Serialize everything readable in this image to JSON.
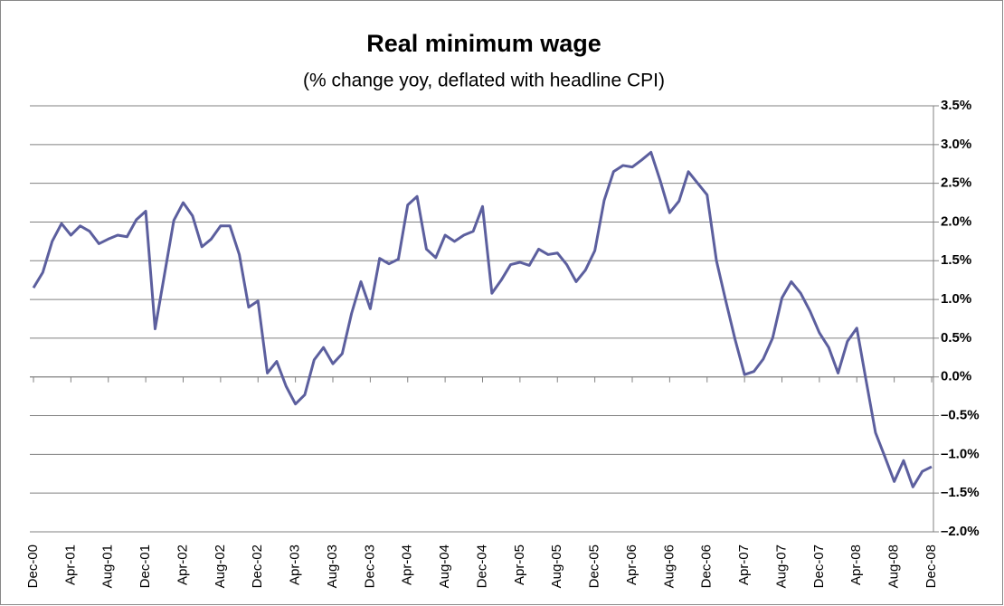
{
  "chart_data": {
    "type": "line",
    "title": "Real minimum wage",
    "subtitle": "(% change yoy, deflated with headline CPI)",
    "categories": [
      "Dec-00",
      null,
      null,
      null,
      "Apr-01",
      null,
      null,
      null,
      "Aug-01",
      null,
      null,
      null,
      "Dec-01",
      null,
      null,
      null,
      "Apr-02",
      null,
      null,
      null,
      "Aug-02",
      null,
      null,
      null,
      "Dec-02",
      null,
      null,
      null,
      "Apr-03",
      null,
      null,
      null,
      "Aug-03",
      null,
      null,
      null,
      "Dec-03",
      null,
      null,
      null,
      "Apr-04",
      null,
      null,
      null,
      "Aug-04",
      null,
      null,
      null,
      "Dec-04",
      null,
      null,
      null,
      "Apr-05",
      null,
      null,
      null,
      "Aug-05",
      null,
      null,
      null,
      "Dec-05",
      null,
      null,
      null,
      "Apr-06",
      null,
      null,
      null,
      "Aug-06",
      null,
      null,
      null,
      "Dec-06",
      null,
      null,
      null,
      "Apr-07",
      null,
      null,
      null,
      "Aug-07",
      null,
      null,
      null,
      "Dec-07",
      null,
      null,
      null,
      "Apr-08",
      null,
      null,
      null,
      "Aug-08",
      null,
      null,
      null,
      "Dec-08"
    ],
    "values": [
      1.15,
      1.35,
      1.75,
      1.98,
      1.83,
      1.95,
      1.88,
      1.72,
      1.78,
      1.83,
      1.81,
      2.03,
      2.14,
      0.62,
      1.32,
      2.02,
      2.25,
      2.08,
      1.68,
      1.78,
      1.95,
      1.95,
      1.58,
      0.9,
      0.98,
      0.05,
      0.2,
      -0.12,
      -0.35,
      -0.23,
      0.22,
      0.38,
      0.17,
      0.3,
      0.82,
      1.23,
      0.88,
      1.53,
      1.46,
      1.52,
      2.22,
      2.33,
      1.65,
      1.54,
      1.83,
      1.75,
      1.83,
      1.88,
      2.2,
      1.08,
      1.25,
      1.45,
      1.48,
      1.44,
      1.65,
      1.58,
      1.6,
      1.45,
      1.23,
      1.38,
      1.63,
      2.28,
      2.65,
      2.73,
      2.71,
      2.8,
      2.9,
      2.53,
      2.12,
      2.27,
      2.65,
      2.5,
      2.35,
      1.5,
      0.98,
      0.48,
      0.03,
      0.07,
      0.23,
      0.5,
      1.02,
      1.23,
      1.08,
      0.85,
      0.57,
      0.38,
      0.05,
      0.46,
      0.63,
      -0.05,
      -0.72,
      -1.03,
      -1.35,
      -1.08,
      -1.42,
      -1.22,
      -1.16
    ],
    "color": "#5c5f9e",
    "ylim": [
      -2.0,
      3.5
    ],
    "yticks": [
      {
        "value": -2.0,
        "label": "–2.0%"
      },
      {
        "value": -1.5,
        "label": "–1.5%"
      },
      {
        "value": -1.0,
        "label": "–1.0%"
      },
      {
        "value": -0.5,
        "label": "–0.5%"
      },
      {
        "value": 0,
        "label": "0.0%"
      },
      {
        "value": 0.5,
        "label": "0.5%"
      },
      {
        "value": 1.0,
        "label": "1.0%"
      },
      {
        "value": 1.5,
        "label": "1.5%"
      },
      {
        "value": 2.0,
        "label": "2.0%"
      },
      {
        "value": 2.5,
        "label": "2.5%"
      },
      {
        "value": 3.0,
        "label": "3.0%"
      },
      {
        "value": 3.5,
        "label": "3.5%"
      }
    ],
    "grid": true
  }
}
